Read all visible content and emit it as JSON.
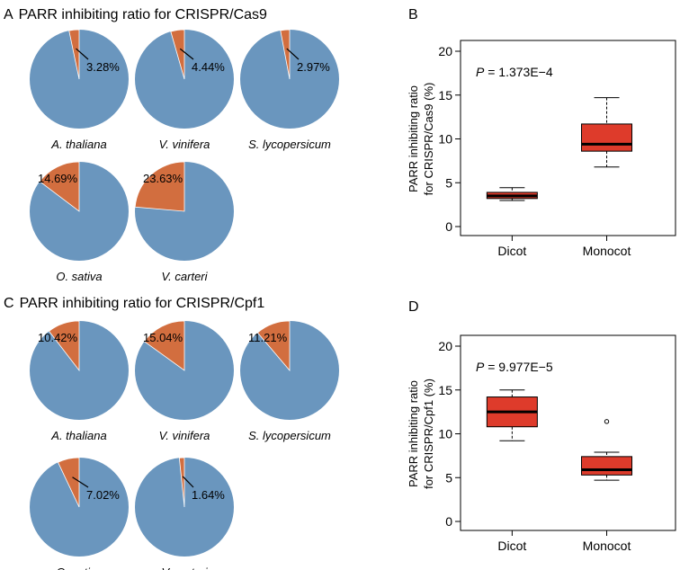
{
  "colors": {
    "pie_main": "#6A96BE",
    "pie_slice": "#D26E3F",
    "box_fill": "#DE3B2B",
    "axis": "#000000"
  },
  "panels": {
    "A": {
      "letter": "A",
      "title": "PARR inhibiting ratio for CRISPR/Cas9"
    },
    "B": {
      "letter": "B"
    },
    "C": {
      "letter": "C",
      "title": "PARR inhibiting ratio for CRISPR/Cpf1"
    },
    "D": {
      "letter": "D"
    }
  },
  "chart_data": [
    {
      "panel": "A",
      "type": "pie",
      "species": "A. thaliana",
      "value_percent": 3.28,
      "label": "3.28%"
    },
    {
      "panel": "A",
      "type": "pie",
      "species": "V. vinifera",
      "value_percent": 4.44,
      "label": "4.44%"
    },
    {
      "panel": "A",
      "type": "pie",
      "species": "S. lycopersicum",
      "value_percent": 2.97,
      "label": "2.97%"
    },
    {
      "panel": "A",
      "type": "pie",
      "species": "O. sativa",
      "value_percent": 14.69,
      "label": "14.69%"
    },
    {
      "panel": "A",
      "type": "pie",
      "species": "V. carteri",
      "value_percent": 23.63,
      "label": "23.63%"
    },
    {
      "panel": "B",
      "type": "box",
      "p_prefix": "P",
      "p_value": " = 1.373E−4",
      "ylabel_line1": "PARR inhibiting ratio",
      "ylabel_line2": "for CRISPR/Cas9 (%)",
      "ylim": [
        0,
        20
      ],
      "ticks": [
        0,
        5,
        10,
        15,
        20
      ],
      "tick_labels": [
        "0",
        "5",
        "10",
        "15",
        "20"
      ],
      "categories": [
        "Dicot",
        "Monocot"
      ],
      "boxes": [
        {
          "name": "Dicot",
          "min": 2.97,
          "q1": 3.2,
          "median": 3.5,
          "q3": 3.9,
          "max": 4.44,
          "outliers": []
        },
        {
          "name": "Monocot",
          "min": 6.8,
          "q1": 8.6,
          "median": 9.4,
          "q3": 11.7,
          "max": 14.7,
          "outliers": []
        }
      ]
    },
    {
      "panel": "C",
      "type": "pie",
      "species": "A. thaliana",
      "value_percent": 10.42,
      "label": "10.42%"
    },
    {
      "panel": "C",
      "type": "pie",
      "species": "V. vinifera",
      "value_percent": 15.04,
      "label": "15.04%"
    },
    {
      "panel": "C",
      "type": "pie",
      "species": "S. lycopersicum",
      "value_percent": 11.21,
      "label": "11.21%"
    },
    {
      "panel": "C",
      "type": "pie",
      "species": "O. sativa",
      "value_percent": 7.02,
      "label": "7.02%"
    },
    {
      "panel": "C",
      "type": "pie",
      "species": "V. carteri",
      "value_percent": 1.64,
      "label": "1.64%"
    },
    {
      "panel": "D",
      "type": "box",
      "p_prefix": "P",
      "p_value": " = 9.977E−5",
      "ylabel_line1": "PARR inhibiting ratio",
      "ylabel_line2": "for CRISPR/Cpf1 (%)",
      "ylim": [
        0,
        20
      ],
      "ticks": [
        0,
        5,
        10,
        15,
        20
      ],
      "tick_labels": [
        "0",
        "5",
        "10",
        "15",
        "20"
      ],
      "categories": [
        "Dicot",
        "Monocot"
      ],
      "boxes": [
        {
          "name": "Dicot",
          "min": 9.2,
          "q1": 10.8,
          "median": 12.5,
          "q3": 14.2,
          "max": 15.0,
          "outliers": []
        },
        {
          "name": "Monocot",
          "min": 4.7,
          "q1": 5.3,
          "median": 5.9,
          "q3": 7.4,
          "max": 7.9,
          "outliers": [
            11.4
          ]
        }
      ]
    }
  ]
}
